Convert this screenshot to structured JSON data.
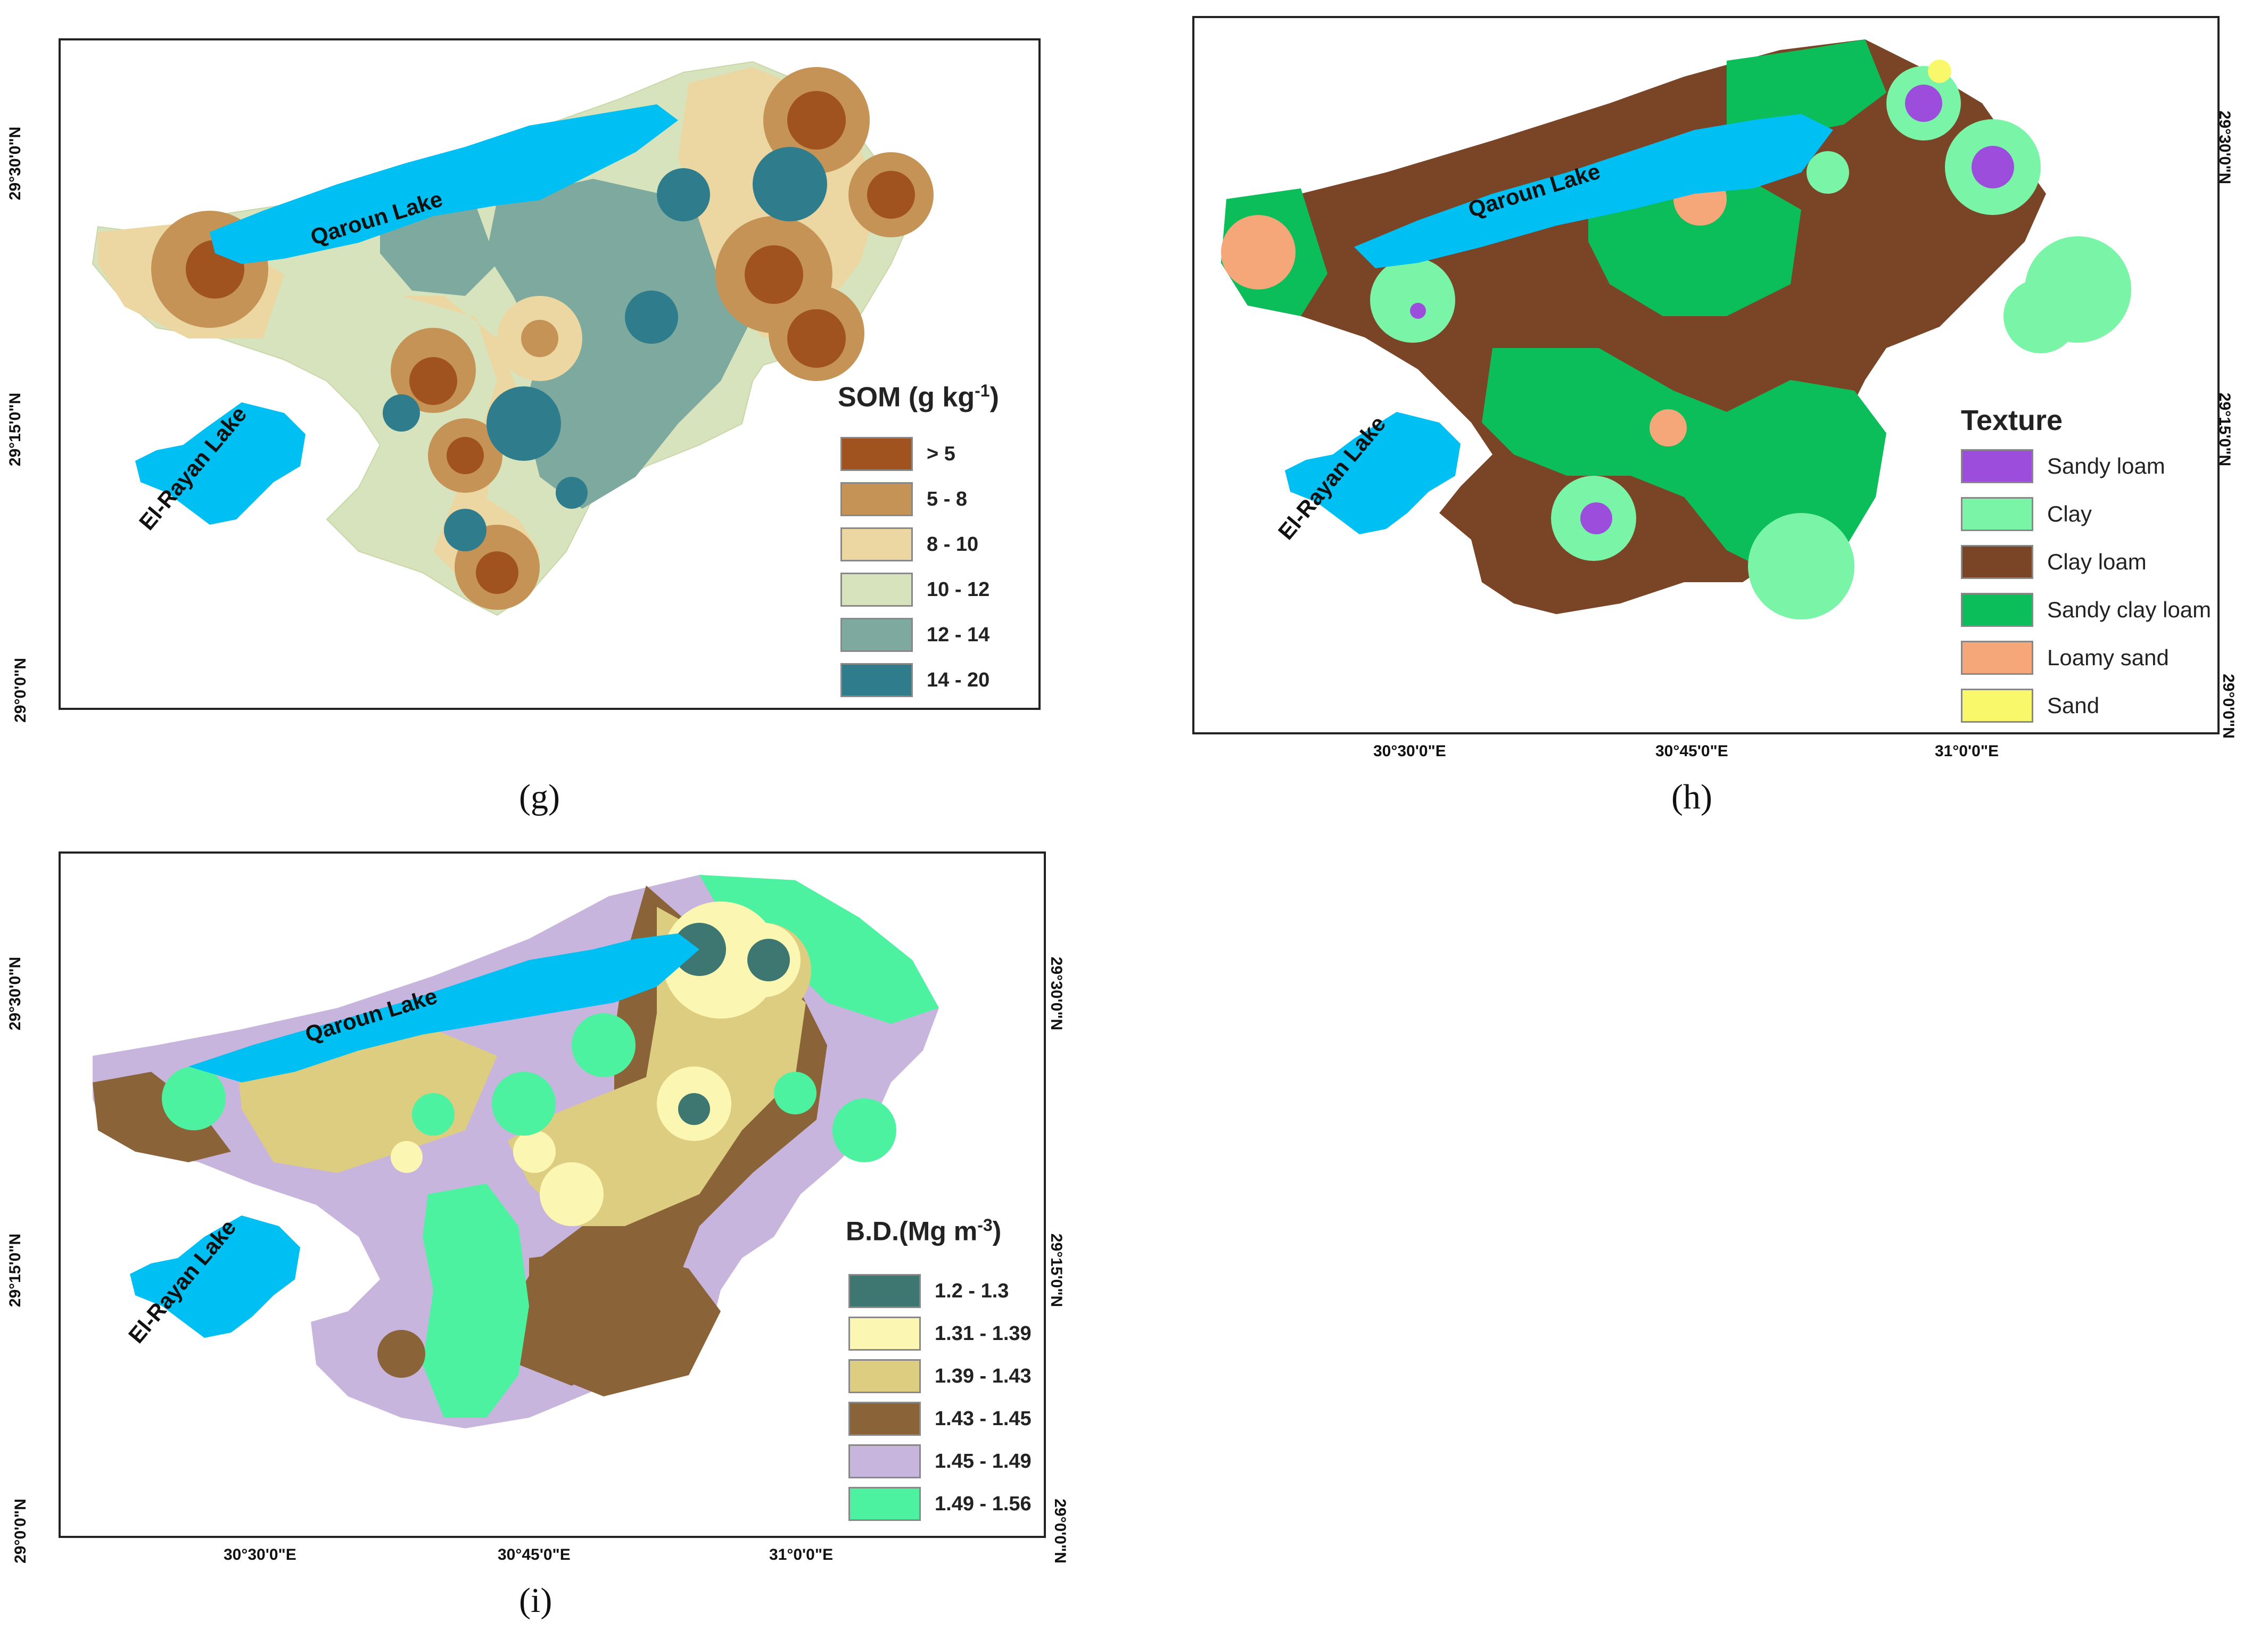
{
  "panels": {
    "g": {
      "caption": "(g)",
      "legend_title": "SOM (g kg",
      "legend_title_sup": "-1",
      "legend_title_end": ")",
      "classes": [
        {
          "label": "> 5",
          "color": "#a0521f"
        },
        {
          "label": "5 - 8",
          "color": "#c69356"
        },
        {
          "label": "8 - 10",
          "color": "#ecd6a2"
        },
        {
          "label": "10 - 12",
          "color": "#d7e3bc"
        },
        {
          "label": "12 - 14",
          "color": "#7ea99e"
        },
        {
          "label": "14 - 20",
          "color": "#2f7d8c"
        }
      ],
      "lat_labels": [
        "29°30'0\"N",
        "29°15'0\"N",
        "29°0'0\"N"
      ],
      "lakes": [
        "Qaroun Lake",
        "El-Rayan Lake"
      ]
    },
    "h": {
      "caption": "(h)",
      "legend_title": "Texture",
      "classes": [
        {
          "label": "Sandy loam",
          "color": "#9c4ddb"
        },
        {
          "label": "Clay",
          "color": "#7af5a8"
        },
        {
          "label": "Clay loam",
          "color": "#7a4426"
        },
        {
          "label": "Sandy clay loam",
          "color": "#0cbe5a"
        },
        {
          "label": "Loamy sand",
          "color": "#f5a77a"
        },
        {
          "label": "Sand",
          "color": "#f8f86a"
        }
      ],
      "lat_labels": [
        "29°30'0\"N",
        "29°15'0\"N",
        "29°0'0\"N"
      ],
      "lon_labels": [
        "30°30'0\"E",
        "30°45'0\"E",
        "31°0'0\"E"
      ],
      "lakes": [
        "Qaroun Lake",
        "El-Rayan Lake"
      ]
    },
    "i": {
      "caption": "(i)",
      "legend_title": "B.D.(Mg m",
      "legend_title_sup": "-3",
      "legend_title_end": ")",
      "classes": [
        {
          "label": "1.2 - 1.3",
          "color": "#3e7772"
        },
        {
          "label": "1.31 - 1.39",
          "color": "#fbf7b3"
        },
        {
          "label": "1.39 - 1.43",
          "color": "#ddcd80"
        },
        {
          "label": "1.43 - 1.45",
          "color": "#8a6438"
        },
        {
          "label": "1.45 - 1.49",
          "color": "#c7b5dd"
        },
        {
          "label": "1.49 - 1.56",
          "color": "#4cf2a0"
        }
      ],
      "lat_labels": [
        "29°30'0\"N",
        "29°15'0\"N",
        "29°0'0\"N"
      ],
      "lon_labels": [
        "30°30'0\"E",
        "30°45'0\"E",
        "31°0'0\"E"
      ],
      "lakes": [
        "Qaroun Lake",
        "El-Rayan Lake"
      ]
    }
  },
  "lake_color": "#00bff3"
}
